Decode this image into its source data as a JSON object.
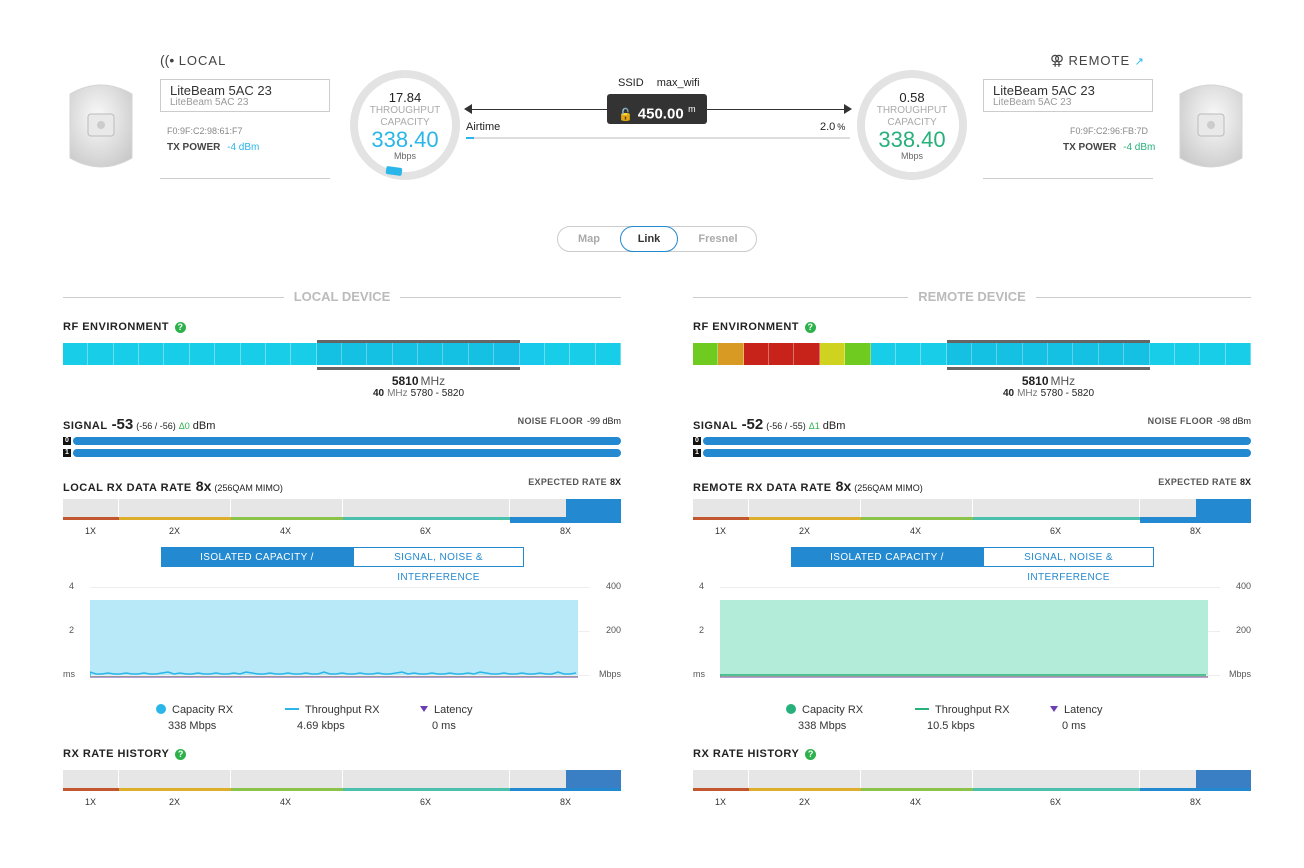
{
  "local": {
    "label": "LOCAL",
    "device_name": "LiteBeam 5AC 23",
    "device_model": "LiteBeam 5AC 23",
    "mac": "F0:9F:C2:98:61:F7",
    "tx_power_label": "TX POWER",
    "tx_power_value": "-4 dBm",
    "ring": {
      "throughput": "17.84",
      "throughput_label": "THROUGHPUT",
      "capacity_label": "CAPACITY",
      "capacity": "338.40",
      "unit": "Mbps",
      "color": "#2ab6e8"
    }
  },
  "remote": {
    "label": "REMOTE",
    "device_name": "LiteBeam 5AC 23",
    "device_model": "LiteBeam 5AC 23",
    "mac": "F0:9F:C2:96:FB:7D",
    "tx_power_label": "TX POWER",
    "tx_power_value": "-4 dBm",
    "ring": {
      "throughput": "0.58",
      "throughput_label": "THROUGHPUT",
      "capacity_label": "CAPACITY",
      "capacity": "338.40",
      "unit": "Mbps",
      "color": "#27b07a"
    }
  },
  "link": {
    "ssid_label": "SSID",
    "ssid": "max_wifi",
    "distance": "450.00",
    "distance_unit": "m",
    "airtime_label": "Airtime",
    "airtime_value": "2.0",
    "airtime_unit": "%"
  },
  "tabs": [
    "Map",
    "Link",
    "Fresnel"
  ],
  "active_tab": "Link",
  "panels": {
    "left": {
      "title": "LOCAL DEVICE",
      "rf_label": "RF ENVIRONMENT",
      "freq": "5810",
      "freq_unit": "MHz",
      "width": "40",
      "width_unit": "MHz",
      "range": "5780 - 5820",
      "signal_label": "SIGNAL",
      "signal_value": "-53",
      "signal_chains": "(-56 / -56)",
      "signal_delta": "Δ0",
      "signal_unit": "dBm",
      "noise_label": "NOISE FLOOR",
      "noise_value": "-99 dBm",
      "chain0": "0",
      "chain1": "1",
      "rate_label": "LOCAL RX DATA RATE",
      "rate_value": "8x",
      "rate_mod": "(256QAM MIMO)",
      "expected_label": "EXPECTED RATE",
      "expected_value": "8X",
      "rate_ticks": [
        "1X",
        "2X",
        "4X",
        "6X",
        "8X"
      ],
      "tab_a": "ISOLATED CAPACITY / THROUGHPUT",
      "tab_b": "SIGNAL, NOISE & INTERFERENCE",
      "y_left": [
        "4",
        "2",
        "ms"
      ],
      "y_right": [
        "400",
        "200",
        "Mbps"
      ],
      "legend": [
        {
          "label": "Capacity RX",
          "value": "338 Mbps",
          "icon": "circle"
        },
        {
          "label": "Throughput RX",
          "value": "4.69 kbps",
          "icon": "square-line"
        },
        {
          "label": "Latency",
          "value": "0 ms",
          "icon": "triangle-line"
        }
      ],
      "history_label": "RX RATE HISTORY",
      "accent": "#b8e9f8"
    },
    "right": {
      "title": "REMOTE DEVICE",
      "rf_label": "RF ENVIRONMENT",
      "freq": "5810",
      "freq_unit": "MHz",
      "width": "40",
      "width_unit": "MHz",
      "range": "5780 - 5820",
      "signal_label": "SIGNAL",
      "signal_value": "-52",
      "signal_chains": "(-56 / -55)",
      "signal_delta": "Δ1",
      "signal_unit": "dBm",
      "noise_label": "NOISE FLOOR",
      "noise_value": "-98 dBm",
      "chain0": "0",
      "chain1": "1",
      "rate_label": "REMOTE RX DATA RATE",
      "rate_value": "8x",
      "rate_mod": "(256QAM MIMO)",
      "expected_label": "EXPECTED RATE",
      "expected_value": "8X",
      "rate_ticks": [
        "1X",
        "2X",
        "4X",
        "6X",
        "8X"
      ],
      "tab_a": "ISOLATED CAPACITY / THROUGHPUT",
      "tab_b": "SIGNAL, NOISE & INTERFERENCE",
      "y_left": [
        "4",
        "2",
        "ms"
      ],
      "y_right": [
        "400",
        "200",
        "Mbps"
      ],
      "legend": [
        {
          "label": "Capacity RX",
          "value": "338 Mbps",
          "icon": "circle"
        },
        {
          "label": "Throughput RX",
          "value": "10.5 kbps",
          "icon": "square-line"
        },
        {
          "label": "Latency",
          "value": "0 ms",
          "icon": "triangle-line"
        }
      ],
      "history_label": "RX RATE HISTORY",
      "accent": "#b3ecd9"
    }
  },
  "colors": {
    "accent_blue": "#2389d0",
    "cyan": "#17cde8",
    "green": "#27b07a",
    "help": "#2db14a",
    "latency": "#6a3fb3"
  }
}
